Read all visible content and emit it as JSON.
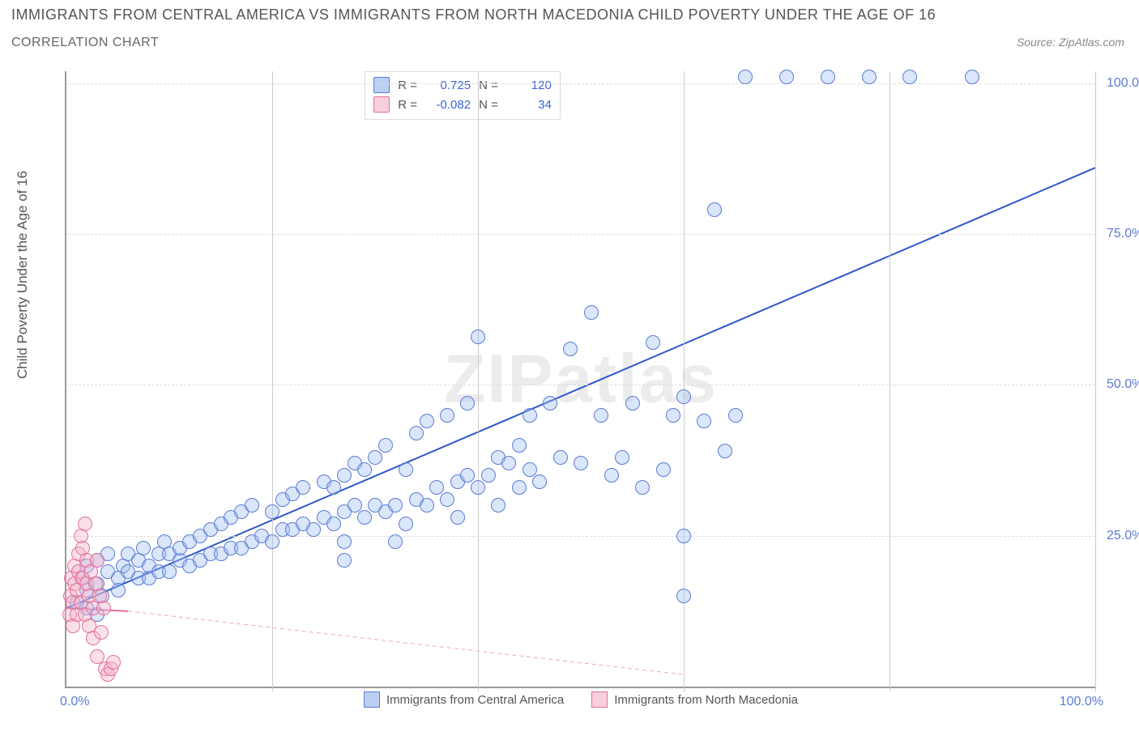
{
  "title": "IMMIGRANTS FROM CENTRAL AMERICA VS IMMIGRANTS FROM NORTH MACEDONIA CHILD POVERTY UNDER THE AGE OF 16",
  "subtitle": "CORRELATION CHART",
  "source": "Source: ZipAtlas.com",
  "watermark": "ZIPatlas",
  "chart": {
    "type": "scatter",
    "xlim": [
      0,
      100
    ],
    "ylim": [
      0,
      102
    ],
    "xlabel": "",
    "ylabel": "Child Poverty Under the Age of 16",
    "yticks": [
      25,
      50,
      75,
      100
    ],
    "ytick_labels": [
      "25.0%",
      "50.0%",
      "75.0%",
      "100.0%"
    ],
    "xtick_zero": "0.0%",
    "xtick_100": "100.0%",
    "grid_color": "#dddddd",
    "axis_color": "#999999",
    "background_color": "#ffffff",
    "text_color": "#555555",
    "value_color": "#3a64d6",
    "vbars": [
      20,
      40,
      60,
      80,
      100
    ],
    "marker_radius": 8,
    "series": [
      {
        "name": "Immigrants from Central America",
        "color_fill": "#9fbdee",
        "color_stroke": "#5b7bd5",
        "R": "0.725",
        "N": "120",
        "trend": {
          "x1": 0,
          "y1": 13,
          "x2": 100,
          "y2": 86,
          "stroke": "#2f58c9",
          "width": 2,
          "dash": "none"
        },
        "points": [
          [
            1,
            14
          ],
          [
            1.5,
            18
          ],
          [
            2,
            16
          ],
          [
            2,
            20
          ],
          [
            2,
            13
          ],
          [
            3,
            17
          ],
          [
            3,
            21
          ],
          [
            3.5,
            15
          ],
          [
            4,
            19
          ],
          [
            4,
            22
          ],
          [
            5,
            18
          ],
          [
            5,
            16
          ],
          [
            5.5,
            20
          ],
          [
            6,
            19
          ],
          [
            6,
            22
          ],
          [
            7,
            18
          ],
          [
            7,
            21
          ],
          [
            7.5,
            23
          ],
          [
            8,
            18
          ],
          [
            8,
            20
          ],
          [
            9,
            19
          ],
          [
            9,
            22
          ],
          [
            9.5,
            24
          ],
          [
            10,
            19
          ],
          [
            10,
            22
          ],
          [
            11,
            21
          ],
          [
            11,
            23
          ],
          [
            12,
            20
          ],
          [
            12,
            24
          ],
          [
            13,
            21
          ],
          [
            13,
            25
          ],
          [
            14,
            22
          ],
          [
            14,
            26
          ],
          [
            15,
            22
          ],
          [
            15,
            27
          ],
          [
            16,
            23
          ],
          [
            16,
            28
          ],
          [
            17,
            23
          ],
          [
            17,
            29
          ],
          [
            18,
            24
          ],
          [
            18,
            30
          ],
          [
            19,
            25
          ],
          [
            20,
            24
          ],
          [
            20,
            29
          ],
          [
            21,
            26
          ],
          [
            21,
            31
          ],
          [
            22,
            26
          ],
          [
            22,
            32
          ],
          [
            23,
            27
          ],
          [
            23,
            33
          ],
          [
            24,
            26
          ],
          [
            25,
            28
          ],
          [
            25,
            34
          ],
          [
            26,
            27
          ],
          [
            26,
            33
          ],
          [
            27,
            29
          ],
          [
            27,
            35
          ],
          [
            27,
            24
          ],
          [
            28,
            30
          ],
          [
            28,
            37
          ],
          [
            29,
            28
          ],
          [
            29,
            36
          ],
          [
            30,
            30
          ],
          [
            30,
            38
          ],
          [
            31,
            29
          ],
          [
            31,
            40
          ],
          [
            32,
            30
          ],
          [
            32,
            24
          ],
          [
            33,
            36
          ],
          [
            33,
            27
          ],
          [
            34,
            31
          ],
          [
            34,
            42
          ],
          [
            35,
            30
          ],
          [
            35,
            44
          ],
          [
            36,
            33
          ],
          [
            37,
            31
          ],
          [
            37,
            45
          ],
          [
            38,
            34
          ],
          [
            38,
            28
          ],
          [
            39,
            35
          ],
          [
            39,
            47
          ],
          [
            40,
            33
          ],
          [
            40,
            58
          ],
          [
            41,
            35
          ],
          [
            42,
            38
          ],
          [
            42,
            30
          ],
          [
            43,
            37
          ],
          [
            44,
            40
          ],
          [
            44,
            33
          ],
          [
            45,
            45
          ],
          [
            45,
            36
          ],
          [
            46,
            34
          ],
          [
            47,
            47
          ],
          [
            48,
            38
          ],
          [
            49,
            56
          ],
          [
            50,
            37
          ],
          [
            51,
            62
          ],
          [
            52,
            45
          ],
          [
            53,
            35
          ],
          [
            54,
            38
          ],
          [
            55,
            47
          ],
          [
            56,
            33
          ],
          [
            57,
            57
          ],
          [
            58,
            36
          ],
          [
            59,
            45
          ],
          [
            60,
            48
          ],
          [
            60,
            25
          ],
          [
            60,
            15
          ],
          [
            62,
            44
          ],
          [
            63,
            79
          ],
          [
            64,
            39
          ],
          [
            65,
            45
          ],
          [
            66,
            101
          ],
          [
            70,
            101
          ],
          [
            74,
            101
          ],
          [
            78,
            101
          ],
          [
            82,
            101
          ],
          [
            88,
            101
          ],
          [
            3,
            12
          ],
          [
            27,
            21
          ]
        ]
      },
      {
        "name": "Immigrants from North Macedonia",
        "color_fill": "#f4b6cc",
        "color_stroke": "#e46f9a",
        "R": "-0.082",
        "N": "34",
        "trend": {
          "x1": 0,
          "y1": 13,
          "x2": 6,
          "y2": 12.5,
          "stroke": "#e46f9a",
          "width": 2,
          "dash": "none",
          "ext": {
            "x1": 6,
            "y1": 12.5,
            "x2": 60,
            "y2": 2,
            "stroke": "#f0a8bd",
            "width": 1,
            "dash": "5,4"
          }
        },
        "points": [
          [
            0.3,
            12
          ],
          [
            0.4,
            15
          ],
          [
            0.5,
            18
          ],
          [
            0.6,
            10
          ],
          [
            0.6,
            14
          ],
          [
            0.8,
            17
          ],
          [
            0.8,
            20
          ],
          [
            1.0,
            12
          ],
          [
            1.0,
            16
          ],
          [
            1.2,
            19
          ],
          [
            1.2,
            22
          ],
          [
            1.4,
            14
          ],
          [
            1.4,
            25
          ],
          [
            1.6,
            18
          ],
          [
            1.6,
            23
          ],
          [
            1.8,
            12
          ],
          [
            1.8,
            27
          ],
          [
            2.0,
            17
          ],
          [
            2.0,
            21
          ],
          [
            2.2,
            15
          ],
          [
            2.2,
            10
          ],
          [
            2.4,
            19
          ],
          [
            2.6,
            13
          ],
          [
            2.6,
            8
          ],
          [
            2.8,
            17
          ],
          [
            3.0,
            21
          ],
          [
            3.0,
            5
          ],
          [
            3.2,
            15
          ],
          [
            3.4,
            9
          ],
          [
            3.6,
            13
          ],
          [
            3.8,
            3
          ],
          [
            4.0,
            2
          ],
          [
            4.3,
            3
          ],
          [
            4.6,
            4
          ]
        ]
      }
    ],
    "legend_box": {
      "rows": [
        {
          "swatch": "b",
          "r_label": "R =",
          "n_label": "N ="
        },
        {
          "swatch": "p",
          "r_label": "R =",
          "n_label": "N ="
        }
      ]
    }
  }
}
